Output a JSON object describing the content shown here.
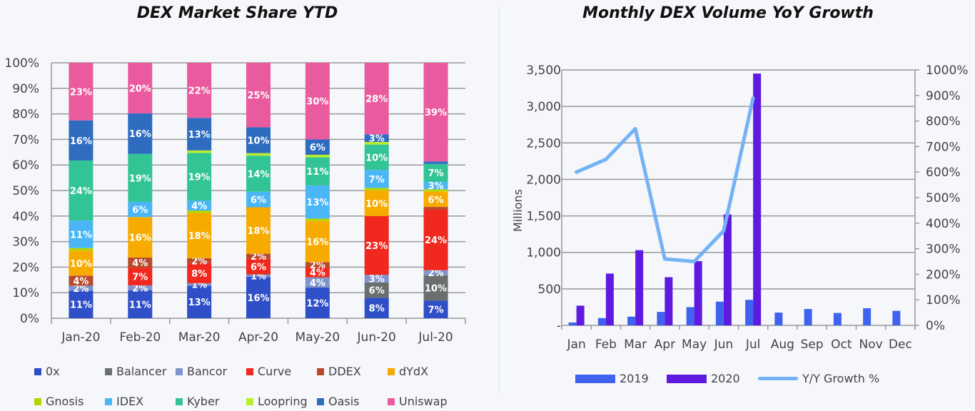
{
  "chart_data": [
    {
      "type": "bar",
      "stacked": "percent",
      "title": "DEX Market Share YTD",
      "categories": [
        "Jan-20",
        "Feb-20",
        "Mar-20",
        "Apr-20",
        "May-20",
        "Jun-20",
        "Jul-20"
      ],
      "yticks": [
        "0%",
        "10%",
        "20%",
        "30%",
        "40%",
        "50%",
        "60%",
        "70%",
        "80%",
        "90%",
        "100%"
      ],
      "ylim": [
        0,
        100
      ],
      "grid": true,
      "legend": "bottom",
      "series": [
        {
          "name": "0x",
          "color": "#2f4fc9",
          "values": [
            11,
            11,
            13,
            16,
            12,
            8,
            7
          ]
        },
        {
          "name": "Balancer",
          "color": "#6b6e6e",
          "values": [
            0,
            0,
            0,
            0,
            0,
            6,
            10
          ]
        },
        {
          "name": "Bancor",
          "color": "#7f93cc",
          "values": [
            2,
            2,
            1,
            1,
            4,
            3,
            2
          ]
        },
        {
          "name": "Curve",
          "color": "#f0281e",
          "values": [
            0,
            7,
            8,
            6,
            4,
            23,
            24
          ]
        },
        {
          "name": "DDEX",
          "color": "#b84a2c",
          "values": [
            4,
            4,
            2,
            2,
            2,
            0,
            1
          ]
        },
        {
          "name": "dYdX",
          "color": "#f7ab00",
          "values": [
            10,
            16,
            18,
            18,
            16,
            10,
            6
          ]
        },
        {
          "name": "Gnosis",
          "color": "#b8d400",
          "values": [
            1,
            0,
            1,
            0,
            1,
            1,
            1
          ]
        },
        {
          "name": "IDEX",
          "color": "#4ab6f5",
          "values": [
            11,
            6,
            4,
            6,
            13,
            7,
            3
          ]
        },
        {
          "name": "Kyber",
          "color": "#33c495",
          "values": [
            24,
            19,
            19,
            14,
            11,
            10,
            7
          ]
        },
        {
          "name": "Loopring",
          "color": "#b8ee2a",
          "values": [
            0,
            0,
            1,
            1,
            1,
            1,
            0
          ]
        },
        {
          "name": "Oasis",
          "color": "#2e6cc0",
          "values": [
            16,
            16,
            13,
            10,
            6,
            3,
            1
          ]
        },
        {
          "name": "Uniswap",
          "color": "#ea5a9e",
          "values": [
            23,
            20,
            22,
            25,
            30,
            28,
            39
          ]
        }
      ]
    },
    {
      "type": "bar+line",
      "title": "Monthly DEX Volume YoY Growth",
      "categories": [
        "Jan",
        "Feb",
        "Mar",
        "Apr",
        "May",
        "Jun",
        "Jul",
        "Aug",
        "Sep",
        "Oct",
        "Nov",
        "Dec"
      ],
      "ylabel": "Millions",
      "ylim": [
        0,
        3500
      ],
      "yticks": [
        "-",
        "500",
        "1,000",
        "1,500",
        "2,000",
        "2,500",
        "3,000",
        "3,500"
      ],
      "y2lim": [
        0,
        1000
      ],
      "y2ticks": [
        "0%",
        "100%",
        "200%",
        "300%",
        "400%",
        "500%",
        "600%",
        "700%",
        "800%",
        "900%",
        "1000%"
      ],
      "grid": true,
      "legend": "bottom",
      "series": [
        {
          "name": "2019",
          "type": "bar",
          "color": "#3f63ee",
          "values": [
            40,
            100,
            120,
            185,
            250,
            325,
            350,
            175,
            225,
            170,
            235,
            200
          ]
        },
        {
          "name": "2020",
          "type": "bar",
          "color": "#5e1adf",
          "values": [
            270,
            710,
            1030,
            660,
            880,
            1520,
            3450,
            null,
            null,
            null,
            null,
            null
          ]
        },
        {
          "name": "Y/Y Growth %",
          "type": "line",
          "axis": "right",
          "color": "#74b3f5",
          "values": [
            600,
            650,
            770,
            260,
            250,
            370,
            890,
            null,
            null,
            null,
            null,
            null
          ]
        }
      ]
    }
  ]
}
